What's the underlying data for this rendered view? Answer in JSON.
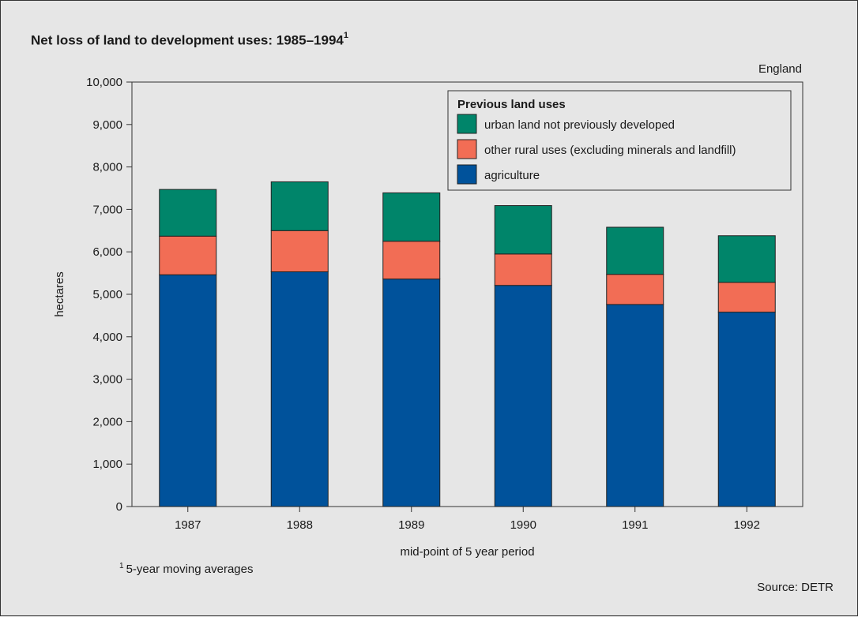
{
  "chart_data": {
    "type": "bar",
    "stacked": true,
    "title": "Net loss of land to development uses: 1985–1994",
    "title_footnote_marker": "1",
    "region_label": "England",
    "xlabel": "mid-point of 5 year period",
    "ylabel": "hectares",
    "ylim": [
      0,
      10000
    ],
    "yticks": [
      0,
      1000,
      2000,
      3000,
      4000,
      5000,
      6000,
      7000,
      8000,
      9000,
      10000
    ],
    "ytick_labels": [
      "0",
      "1,000",
      "2,000",
      "3,000",
      "4,000",
      "5,000",
      "6,000",
      "7,000",
      "8,000",
      "9,000",
      "10,000"
    ],
    "categories": [
      "1987",
      "1988",
      "1989",
      "1990",
      "1991",
      "1992"
    ],
    "legend_title": "Previous land uses",
    "legend_position": "top-right",
    "grid": false,
    "series": [
      {
        "name": "agriculture",
        "color": "#00529b",
        "values": [
          5460,
          5530,
          5360,
          5210,
          4760,
          4580
        ]
      },
      {
        "name": "other rural uses (excluding minerals and landfill)",
        "color": "#f26d55",
        "values": [
          910,
          970,
          890,
          740,
          710,
          700
        ]
      },
      {
        "name": "urban land not previously developed",
        "color": "#00856a",
        "values": [
          1100,
          1150,
          1140,
          1140,
          1110,
          1100
        ]
      }
    ],
    "legend_order": [
      2,
      1,
      0
    ]
  },
  "footnote": {
    "marker": "1",
    "text": "5-year moving averages"
  },
  "source": "Source: DETR"
}
